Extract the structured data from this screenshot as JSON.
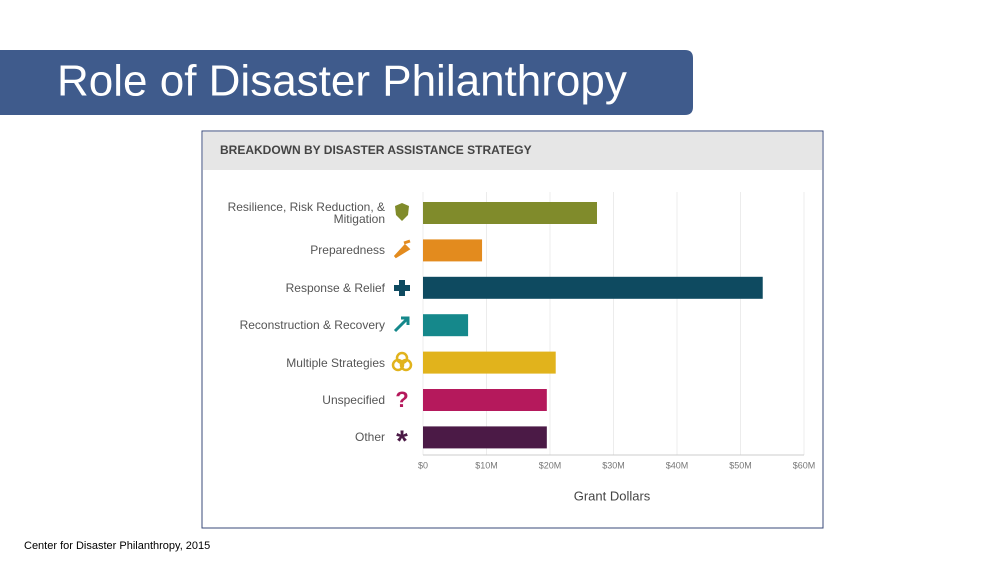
{
  "title": "Role of Disaster Philanthropy",
  "source": "Center for Disaster Philanthropy, 2015",
  "chart_data": {
    "type": "hbar",
    "title": "BREAKDOWN BY DISASTER ASSISTANCE STRATEGY",
    "xlabel": "Grant Dollars",
    "categories": [
      "Resilience, Risk Reduction, & Mitigation",
      "Preparedness",
      "Response & Relief",
      "Reconstruction & Recovery",
      "Multiple Strategies",
      "Unspecified",
      "Other"
    ],
    "values": [
      27.4,
      9.3,
      53.5,
      7.1,
      20.9,
      19.5,
      19.5
    ],
    "colors": [
      "#808b2b",
      "#e38b1e",
      "#0e4a60",
      "#15888b",
      "#e1b31c",
      "#b5195c",
      "#4b1a46"
    ],
    "xlim": [
      0,
      60
    ],
    "xticks": [
      {
        "value": 0,
        "label": "$0"
      },
      {
        "value": 10,
        "label": "$10M"
      },
      {
        "value": 20,
        "label": "$20M"
      },
      {
        "value": 30,
        "label": "$30M"
      },
      {
        "value": 40,
        "label": "$40M"
      },
      {
        "value": 50,
        "label": "$50M"
      },
      {
        "value": 60,
        "label": "$60M"
      }
    ],
    "grid": true
  }
}
